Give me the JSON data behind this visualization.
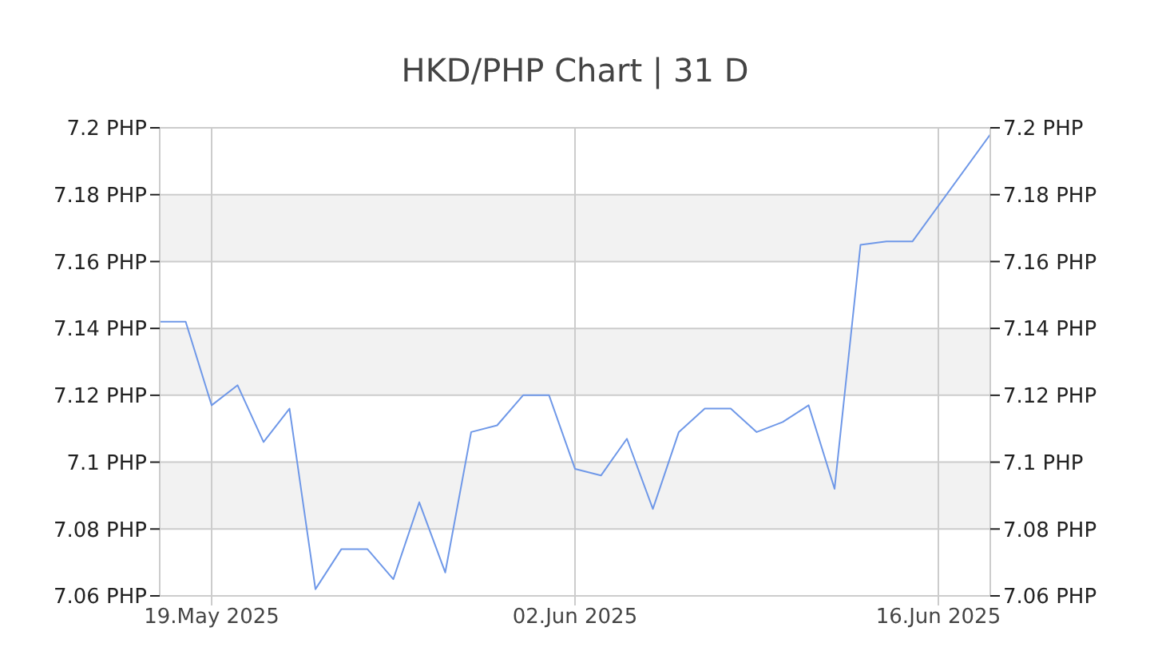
{
  "chart_data": {
    "type": "line",
    "title": "HKD/PHP Chart | 31 D",
    "x": [
      "2025-05-17",
      "2025-05-18",
      "2025-05-19",
      "2025-05-20",
      "2025-05-21",
      "2025-05-22",
      "2025-05-23",
      "2025-05-24",
      "2025-05-25",
      "2025-05-26",
      "2025-05-27",
      "2025-05-28",
      "2025-05-29",
      "2025-05-30",
      "2025-05-31",
      "2025-06-01",
      "2025-06-02",
      "2025-06-03",
      "2025-06-04",
      "2025-06-05",
      "2025-06-06",
      "2025-06-07",
      "2025-06-08",
      "2025-06-09",
      "2025-06-10",
      "2025-06-11",
      "2025-06-12",
      "2025-06-13",
      "2025-06-14",
      "2025-06-15",
      "2025-06-18"
    ],
    "series": [
      {
        "color": "#6f98e8",
        "values": [
          7.142,
          7.142,
          7.117,
          7.123,
          7.106,
          7.116,
          7.062,
          7.074,
          7.074,
          7.065,
          7.088,
          7.067,
          7.109,
          7.111,
          7.12,
          7.12,
          7.098,
          7.096,
          7.107,
          7.086,
          7.109,
          7.116,
          7.116,
          7.109,
          7.112,
          7.117,
          7.092,
          7.165,
          7.166,
          7.166,
          7.198
        ]
      }
    ],
    "xlim": [
      "2025-05-17",
      "2025-06-18"
    ],
    "xticks": [
      {
        "value": "2025-05-19",
        "label": "19.May 2025"
      },
      {
        "value": "2025-06-02",
        "label": "02.Jun 2025"
      },
      {
        "value": "2025-06-16",
        "label": "16.Jun 2025"
      }
    ],
    "ylim": [
      7.06,
      7.2
    ],
    "yticks": [
      {
        "value": 7.06,
        "label": "7.06 PHP"
      },
      {
        "value": 7.08,
        "label": "7.08 PHP"
      },
      {
        "value": 7.1,
        "label": "7.1 PHP"
      },
      {
        "value": 7.12,
        "label": "7.12 PHP"
      },
      {
        "value": 7.14,
        "label": "7.14 PHP"
      },
      {
        "value": 7.16,
        "label": "7.16 PHP"
      },
      {
        "value": 7.18,
        "label": "7.18 PHP"
      },
      {
        "value": 7.2,
        "label": "7.2 PHP"
      }
    ],
    "y2lim": [
      7.06,
      7.2
    ],
    "y2ticks": [
      {
        "value": 7.06,
        "label": "7.06 PHP"
      },
      {
        "value": 7.08,
        "label": "7.08 PHP"
      },
      {
        "value": 7.1,
        "label": "7.1 PHP"
      },
      {
        "value": 7.12,
        "label": "7.12 PHP"
      },
      {
        "value": 7.14,
        "label": "7.14 PHP"
      },
      {
        "value": 7.16,
        "label": "7.16 PHP"
      },
      {
        "value": 7.18,
        "label": "7.18 PHP"
      },
      {
        "value": 7.2,
        "label": "7.2 PHP"
      }
    ],
    "grid": true,
    "marker": "none",
    "line_style": "solid"
  }
}
